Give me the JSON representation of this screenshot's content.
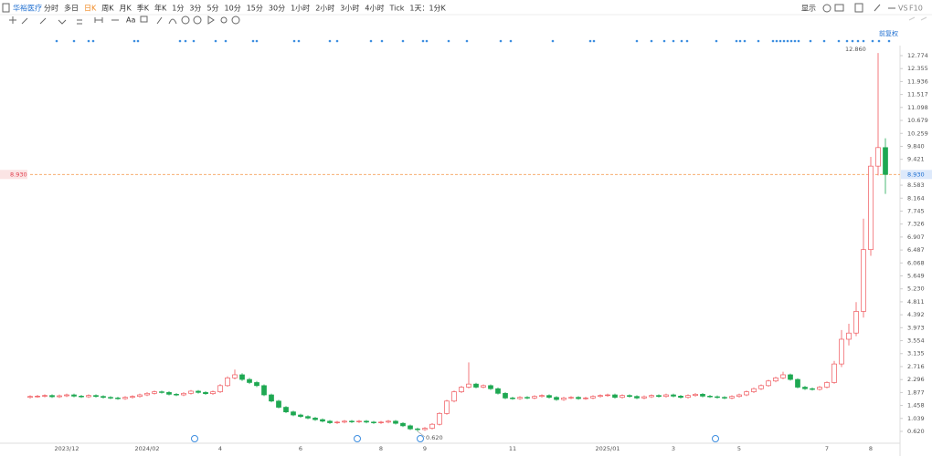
{
  "toolbar": {
    "symbol": "华裕医疗",
    "periods_before": [
      "分时",
      "多日"
    ],
    "active": "日K",
    "periods_after": [
      "周K",
      "月K",
      "季K",
      "年K",
      "1分",
      "3分",
      "5分",
      "10分",
      "15分",
      "30分",
      "1小时",
      "2小时",
      "3小时",
      "4小时",
      "Tick",
      "1天：1分K"
    ],
    "right": [
      "显示",
      "VS",
      "F10"
    ],
    "font_tool": "Aa"
  },
  "chart_data": {
    "type": "candlestick",
    "adjust_label": "前复权",
    "up_color": "#f0595e",
    "down_color": "#1ea852",
    "categories": [
      null,
      null,
      null,
      null,
      null,
      "2023/12",
      null,
      null,
      null,
      null,
      null,
      null,
      null,
      null,
      null,
      null,
      "2024/02",
      null,
      null,
      null,
      null,
      null,
      null,
      null,
      null,
      null,
      "4",
      null,
      null,
      null,
      null,
      null,
      null,
      null,
      null,
      null,
      null,
      "6",
      null,
      null,
      null,
      null,
      null,
      null,
      null,
      null,
      null,
      null,
      "8",
      null,
      null,
      null,
      null,
      null,
      "9",
      null,
      null,
      null,
      null,
      null,
      null,
      null,
      null,
      null,
      null,
      null,
      "11",
      null,
      null,
      null,
      null,
      null,
      null,
      null,
      null,
      null,
      null,
      null,
      null,
      "2025/01",
      null,
      null,
      null,
      null,
      null,
      null,
      null,
      null,
      "3",
      null,
      null,
      null,
      null,
      null,
      null,
      null,
      null,
      "5",
      null,
      null,
      null,
      null,
      null,
      null,
      null,
      null,
      null,
      null,
      null,
      "7",
      null,
      null,
      null,
      null,
      null,
      "8",
      null,
      null
    ],
    "open": [
      1.72,
      1.75,
      1.76,
      1.78,
      1.74,
      1.77,
      1.8,
      1.76,
      1.74,
      1.78,
      1.75,
      1.72,
      1.7,
      1.68,
      1.72,
      1.75,
      1.8,
      1.85,
      1.9,
      1.88,
      1.82,
      1.8,
      1.85,
      1.92,
      1.88,
      1.84,
      1.9,
      2.1,
      2.35,
      2.45,
      2.3,
      2.2,
      2.1,
      1.8,
      1.6,
      1.4,
      1.25,
      1.15,
      1.1,
      1.05,
      1.0,
      0.95,
      0.9,
      0.92,
      0.95,
      0.93,
      0.95,
      0.92,
      0.9,
      0.92,
      0.95,
      0.88,
      0.8,
      0.7,
      0.68,
      0.72,
      0.85,
      1.2,
      1.6,
      1.9,
      2.05,
      2.15,
      2.05,
      2.1,
      2.0,
      1.85,
      1.7,
      1.68,
      1.72,
      1.7,
      1.75,
      1.78,
      1.72,
      1.65,
      1.7,
      1.72,
      1.68,
      1.7,
      1.75,
      1.78,
      1.8,
      1.72,
      1.78,
      1.75,
      1.7,
      1.74,
      1.78,
      1.75,
      1.8,
      1.76,
      1.72,
      1.78,
      1.82,
      1.76,
      1.74,
      1.72,
      1.7,
      1.75,
      1.8,
      1.9,
      2.0,
      2.1,
      2.25,
      2.35,
      2.45,
      2.3,
      2.05,
      2.0,
      1.98,
      2.05,
      2.2,
      2.8,
      3.6,
      3.8,
      4.5,
      6.5,
      9.2,
      9.8
    ],
    "high": [
      1.79,
      1.8,
      1.82,
      1.82,
      1.81,
      1.84,
      1.84,
      1.8,
      1.82,
      1.82,
      1.79,
      1.76,
      1.74,
      1.76,
      1.79,
      1.84,
      1.89,
      1.94,
      1.94,
      1.92,
      1.86,
      1.89,
      1.96,
      1.96,
      1.92,
      1.94,
      2.15,
      2.4,
      2.62,
      2.5,
      2.35,
      2.25,
      2.14,
      1.84,
      1.64,
      1.44,
      1.29,
      1.19,
      1.14,
      1.09,
      1.04,
      0.99,
      0.96,
      0.99,
      0.99,
      0.99,
      0.99,
      0.96,
      0.96,
      0.99,
      0.99,
      0.92,
      0.84,
      0.74,
      0.76,
      0.89,
      1.24,
      1.64,
      1.94,
      2.09,
      2.85,
      2.19,
      2.14,
      2.14,
      2.04,
      1.89,
      1.74,
      1.76,
      1.76,
      1.79,
      1.82,
      1.82,
      1.76,
      1.74,
      1.76,
      1.76,
      1.74,
      1.79,
      1.82,
      1.84,
      1.84,
      1.82,
      1.82,
      1.79,
      1.78,
      1.82,
      1.82,
      1.84,
      1.84,
      1.8,
      1.82,
      1.86,
      1.86,
      1.8,
      1.78,
      1.76,
      1.79,
      1.84,
      1.94,
      2.04,
      2.14,
      2.29,
      2.39,
      2.55,
      2.49,
      2.34,
      2.09,
      2.04,
      2.09,
      2.24,
      2.9,
      3.9,
      4.1,
      4.8,
      7.5,
      9.5,
      12.86,
      10.1
    ],
    "low": [
      1.68,
      1.71,
      1.72,
      1.7,
      1.7,
      1.73,
      1.72,
      1.7,
      1.7,
      1.71,
      1.68,
      1.66,
      1.64,
      1.64,
      1.68,
      1.71,
      1.76,
      1.81,
      1.84,
      1.78,
      1.76,
      1.76,
      1.81,
      1.84,
      1.8,
      1.8,
      1.86,
      2.06,
      2.3,
      2.25,
      2.15,
      2.05,
      1.76,
      1.56,
      1.36,
      1.21,
      1.11,
      1.06,
      1.01,
      0.96,
      0.91,
      0.86,
      0.86,
      0.88,
      0.89,
      0.89,
      0.88,
      0.86,
      0.86,
      0.88,
      0.84,
      0.76,
      0.66,
      0.62,
      0.64,
      0.68,
      0.81,
      1.16,
      1.56,
      1.86,
      2.01,
      2.01,
      2.01,
      1.96,
      1.81,
      1.66,
      1.64,
      1.64,
      1.66,
      1.66,
      1.71,
      1.68,
      1.61,
      1.61,
      1.66,
      1.64,
      1.64,
      1.66,
      1.71,
      1.74,
      1.68,
      1.68,
      1.71,
      1.66,
      1.66,
      1.7,
      1.71,
      1.71,
      1.72,
      1.68,
      1.68,
      1.74,
      1.72,
      1.7,
      1.68,
      1.66,
      1.66,
      1.71,
      1.76,
      1.86,
      1.96,
      2.06,
      2.21,
      2.31,
      2.26,
      2.01,
      1.96,
      1.94,
      1.94,
      2.01,
      2.16,
      2.7,
      3.4,
      3.7,
      4.3,
      6.3,
      8.9,
      8.3
    ],
    "close": [
      1.75,
      1.76,
      1.78,
      1.74,
      1.77,
      1.8,
      1.76,
      1.74,
      1.78,
      1.75,
      1.72,
      1.7,
      1.68,
      1.72,
      1.75,
      1.8,
      1.85,
      1.9,
      1.88,
      1.82,
      1.8,
      1.85,
      1.92,
      1.88,
      1.84,
      1.9,
      2.1,
      2.35,
      2.45,
      2.3,
      2.2,
      2.1,
      1.8,
      1.6,
      1.4,
      1.25,
      1.15,
      1.1,
      1.05,
      1.0,
      0.95,
      0.9,
      0.92,
      0.95,
      0.93,
      0.95,
      0.92,
      0.9,
      0.92,
      0.95,
      0.88,
      0.8,
      0.7,
      0.68,
      0.72,
      0.85,
      1.2,
      1.6,
      1.9,
      2.05,
      2.15,
      2.05,
      2.1,
      2.0,
      1.85,
      1.7,
      1.68,
      1.72,
      1.7,
      1.75,
      1.78,
      1.72,
      1.65,
      1.7,
      1.72,
      1.68,
      1.7,
      1.75,
      1.78,
      1.8,
      1.72,
      1.78,
      1.75,
      1.7,
      1.74,
      1.78,
      1.75,
      1.8,
      1.76,
      1.72,
      1.78,
      1.82,
      1.76,
      1.74,
      1.72,
      1.7,
      1.75,
      1.8,
      1.9,
      2.0,
      2.1,
      2.25,
      2.35,
      2.45,
      2.3,
      2.05,
      2.0,
      1.98,
      2.05,
      2.2,
      2.8,
      3.6,
      3.8,
      4.5,
      6.5,
      9.2,
      9.8,
      8.93
    ],
    "ylim": [
      0.266,
      12.951
    ],
    "yticks": [
      12.774,
      12.355,
      11.936,
      11.517,
      11.098,
      10.679,
      10.259,
      {
        "value": 9.84,
        "label": "9.840"
      },
      9.421,
      8.583,
      8.164,
      7.745,
      7.326,
      6.907,
      6.487,
      6.068,
      5.649,
      {
        "value": 5.23,
        "label": "5.230"
      },
      4.811,
      4.392,
      3.973,
      3.554,
      3.135,
      2.716,
      2.296,
      1.877,
      1.458,
      1.039,
      {
        "value": 0.62,
        "label": "0.620"
      }
    ],
    "current_price": {
      "value": 8.93,
      "label": "8.930"
    },
    "max_label": {
      "value": 12.86,
      "label": "12.860"
    },
    "min_label": {
      "value": 0.62,
      "label": "0.620"
    }
  }
}
